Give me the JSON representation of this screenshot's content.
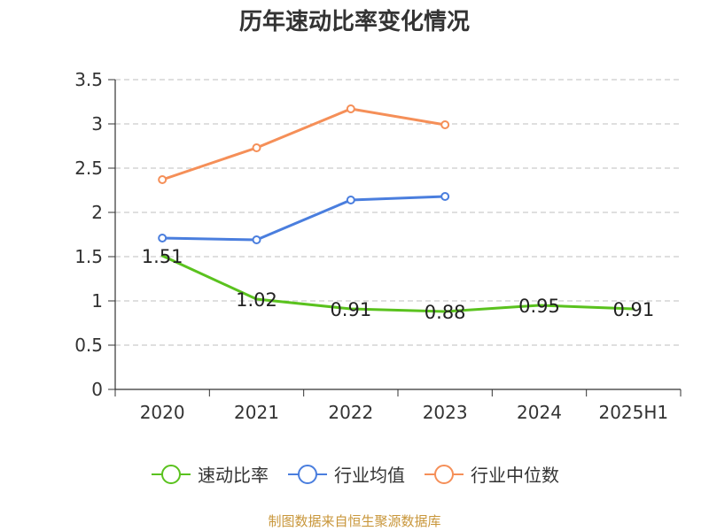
{
  "title": "历年速动比率变化情况",
  "source_note": "制图数据来自恒生聚源数据库",
  "chart_data": {
    "type": "line",
    "title": "历年速动比率变化情况",
    "xlabel": "",
    "ylabel": "",
    "categories": [
      "2020",
      "2021",
      "2022",
      "2023",
      "2024",
      "2025H1"
    ],
    "ylim": [
      0,
      3.5
    ],
    "yticks": [
      0,
      0.5,
      1,
      1.5,
      2,
      2.5,
      3,
      3.5
    ],
    "ytick_labels": [
      "0",
      "0.5",
      "1",
      "1.5",
      "2",
      "2.5",
      "3",
      "3.5"
    ],
    "grid": true,
    "legend_position": "bottom",
    "series": [
      {
        "name": "速动比率",
        "color": "#5ac21e",
        "values": [
          1.51,
          1.02,
          0.91,
          0.88,
          0.95,
          0.91
        ],
        "data_labels": [
          "1.51",
          "1.02",
          "0.91",
          "0.88",
          "0.95",
          "0.91"
        ],
        "markers": false
      },
      {
        "name": "行业均值",
        "color": "#4a7ede",
        "values": [
          1.71,
          1.69,
          2.14,
          2.18,
          null,
          null
        ],
        "markers": true
      },
      {
        "name": "行业中位数",
        "color": "#f58f58",
        "values": [
          2.37,
          2.73,
          3.17,
          2.99,
          null,
          null
        ],
        "markers": true
      }
    ]
  }
}
